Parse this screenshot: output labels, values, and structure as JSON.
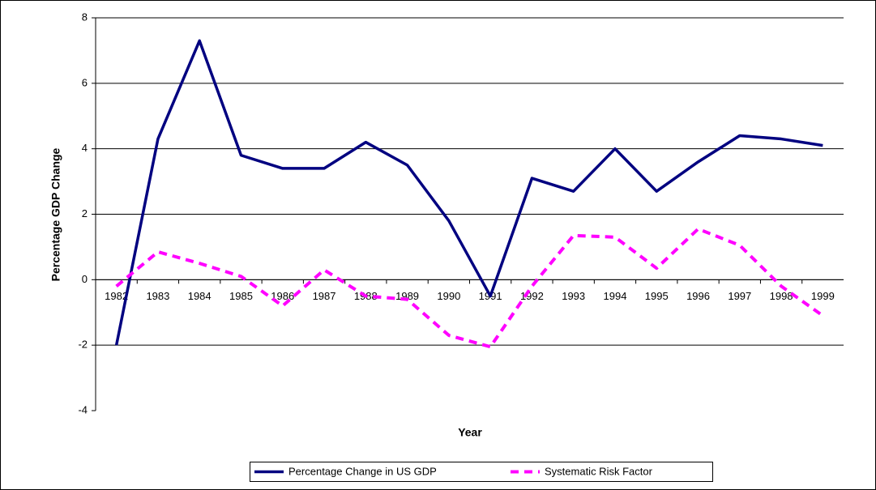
{
  "chart_data": {
    "type": "line",
    "x_label": "Year",
    "y_label": "Percentage GDP Change",
    "categories": [
      "1982",
      "1983",
      "1984",
      "1985",
      "1986",
      "1987",
      "1988",
      "1989",
      "1990",
      "1991",
      "1992",
      "1993",
      "1994",
      "1995",
      "1996",
      "1997",
      "1998",
      "1999"
    ],
    "series": [
      {
        "name": "Percentage Change in US GDP",
        "color": "#000080",
        "dash": false,
        "values": [
          -2,
          4.3,
          7.3,
          3.8,
          3.4,
          3.4,
          4.2,
          3.5,
          1.8,
          -0.5,
          3.1,
          2.7,
          4.0,
          2.7,
          3.6,
          4.4,
          4.3,
          4.1
        ]
      },
      {
        "name": "Systematic Risk Factor",
        "color": "#ff00ff",
        "dash": true,
        "values": [
          -0.2,
          0.85,
          0.5,
          0.1,
          -0.8,
          0.3,
          -0.5,
          -0.6,
          -1.7,
          -2.05,
          -0.2,
          1.35,
          1.3,
          0.35,
          1.55,
          1.05,
          -0.2,
          -1.1
        ]
      }
    ],
    "ylim": [
      -4,
      8
    ],
    "yticks": [
      -4,
      -2,
      0,
      2,
      4,
      6,
      8
    ],
    "grid": true,
    "legend": "bottom"
  }
}
